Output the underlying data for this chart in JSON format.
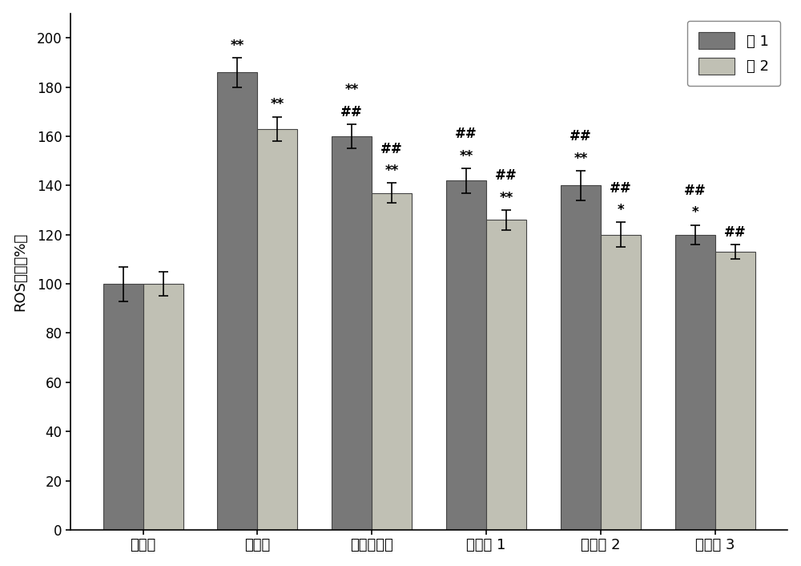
{
  "categories": [
    "空白组",
    "模型组",
    "阳性对照组",
    "样品组 1",
    "样品组 2",
    "样品组 3"
  ],
  "fa1_values": [
    100,
    186,
    160,
    142,
    140,
    120
  ],
  "fa2_values": [
    100,
    163,
    137,
    126,
    120,
    113
  ],
  "fa1_errors": [
    7,
    6,
    5,
    5,
    6,
    4
  ],
  "fa2_errors": [
    5,
    5,
    4,
    4,
    5,
    3
  ],
  "fa1_color": "#787878",
  "fa2_color": "#c0c0b4",
  "ylabel": "ROS含量（%）",
  "ylim": [
    0,
    210
  ],
  "yticks": [
    0,
    20,
    40,
    60,
    80,
    100,
    120,
    140,
    160,
    180,
    200
  ],
  "legend_labels": [
    "法 1",
    "法 2"
  ],
  "bar_width": 0.35,
  "background_color": "#ffffff",
  "edge_color": "#444444",
  "annot_fa1": [
    "",
    "**",
    "**\n##",
    "##\n**",
    "##\n**",
    "##\n*"
  ],
  "annot_fa2": [
    "",
    "**",
    "##\n**",
    "##\n**",
    "##\n*",
    "##"
  ]
}
